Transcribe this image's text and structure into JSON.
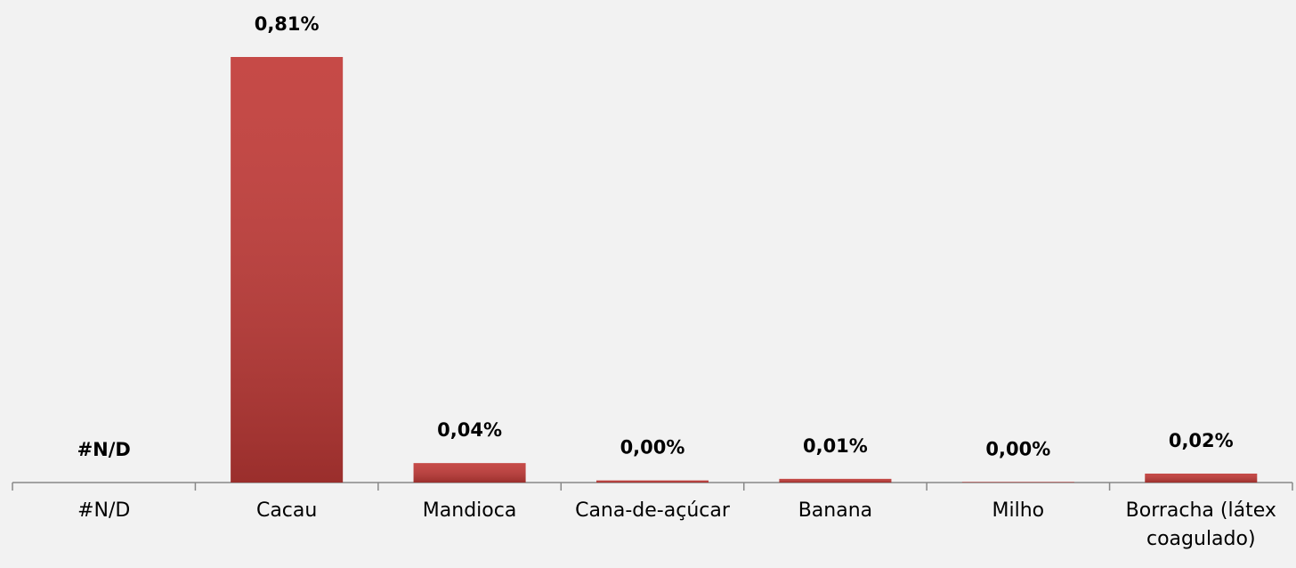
{
  "chart_data": {
    "type": "bar",
    "categories": [
      "#N/D",
      "Cacau",
      "Mandioca",
      "Cana-de-açúcar",
      "Banana",
      "Milho",
      "Borracha (látex coagulado)"
    ],
    "values": [
      null,
      0.81,
      0.037,
      0.004,
      0.007,
      0.001,
      0.017
    ],
    "value_labels": [
      "#N/D",
      "0,81%",
      "0,04%",
      "0,00%",
      "0,01%",
      "0,00%",
      "0,02%"
    ],
    "color": "#c13a37"
  }
}
